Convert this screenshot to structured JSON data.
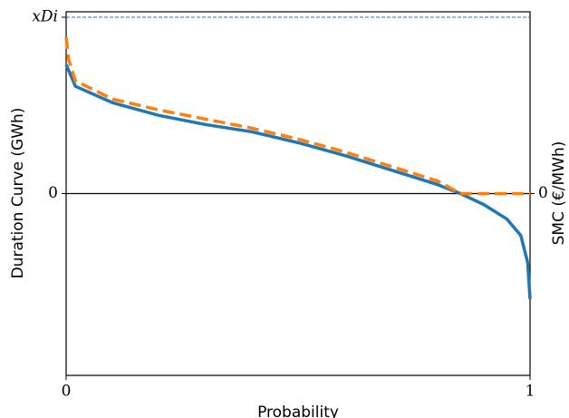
{
  "chart_data": {
    "type": "line",
    "xlabel": "Probability",
    "ylabel": "Duration Curve (GWh)",
    "y2label": "SMC (€/MWh)",
    "xlim": [
      0,
      1
    ],
    "xticks": [
      0,
      1
    ],
    "ylim": [
      -1,
      1
    ],
    "yticks": [
      0,
      {
        "value": 0.97,
        "label": "xDi"
      }
    ],
    "y2lim": [
      -1,
      1
    ],
    "y2ticks": [
      0
    ],
    "series": [
      {
        "color": "#1f77b4",
        "style": "solid",
        "x": [
          0,
          0.02,
          0.1,
          0.2,
          0.3,
          0.4,
          0.5,
          0.6,
          0.7,
          0.8,
          0.85,
          0.9,
          0.95,
          0.98,
          0.995,
          1
        ],
        "values": [
          0.71,
          0.59,
          0.5,
          0.43,
          0.38,
          0.34,
          0.28,
          0.21,
          0.13,
          0.05,
          0,
          -0.06,
          -0.14,
          -0.23,
          -0.38,
          -0.58
        ]
      },
      {
        "color": "#ff7f0e",
        "style": "dashed",
        "axis": "y2",
        "x": [
          0,
          0.005,
          0.02,
          0.1,
          0.2,
          0.3,
          0.4,
          0.5,
          0.6,
          0.7,
          0.8,
          0.85,
          0.9,
          0.95,
          1
        ],
        "values": [
          0.86,
          0.74,
          0.62,
          0.52,
          0.46,
          0.41,
          0.36,
          0.3,
          0.23,
          0.15,
          0.07,
          0,
          0,
          0,
          0
        ]
      }
    ]
  }
}
